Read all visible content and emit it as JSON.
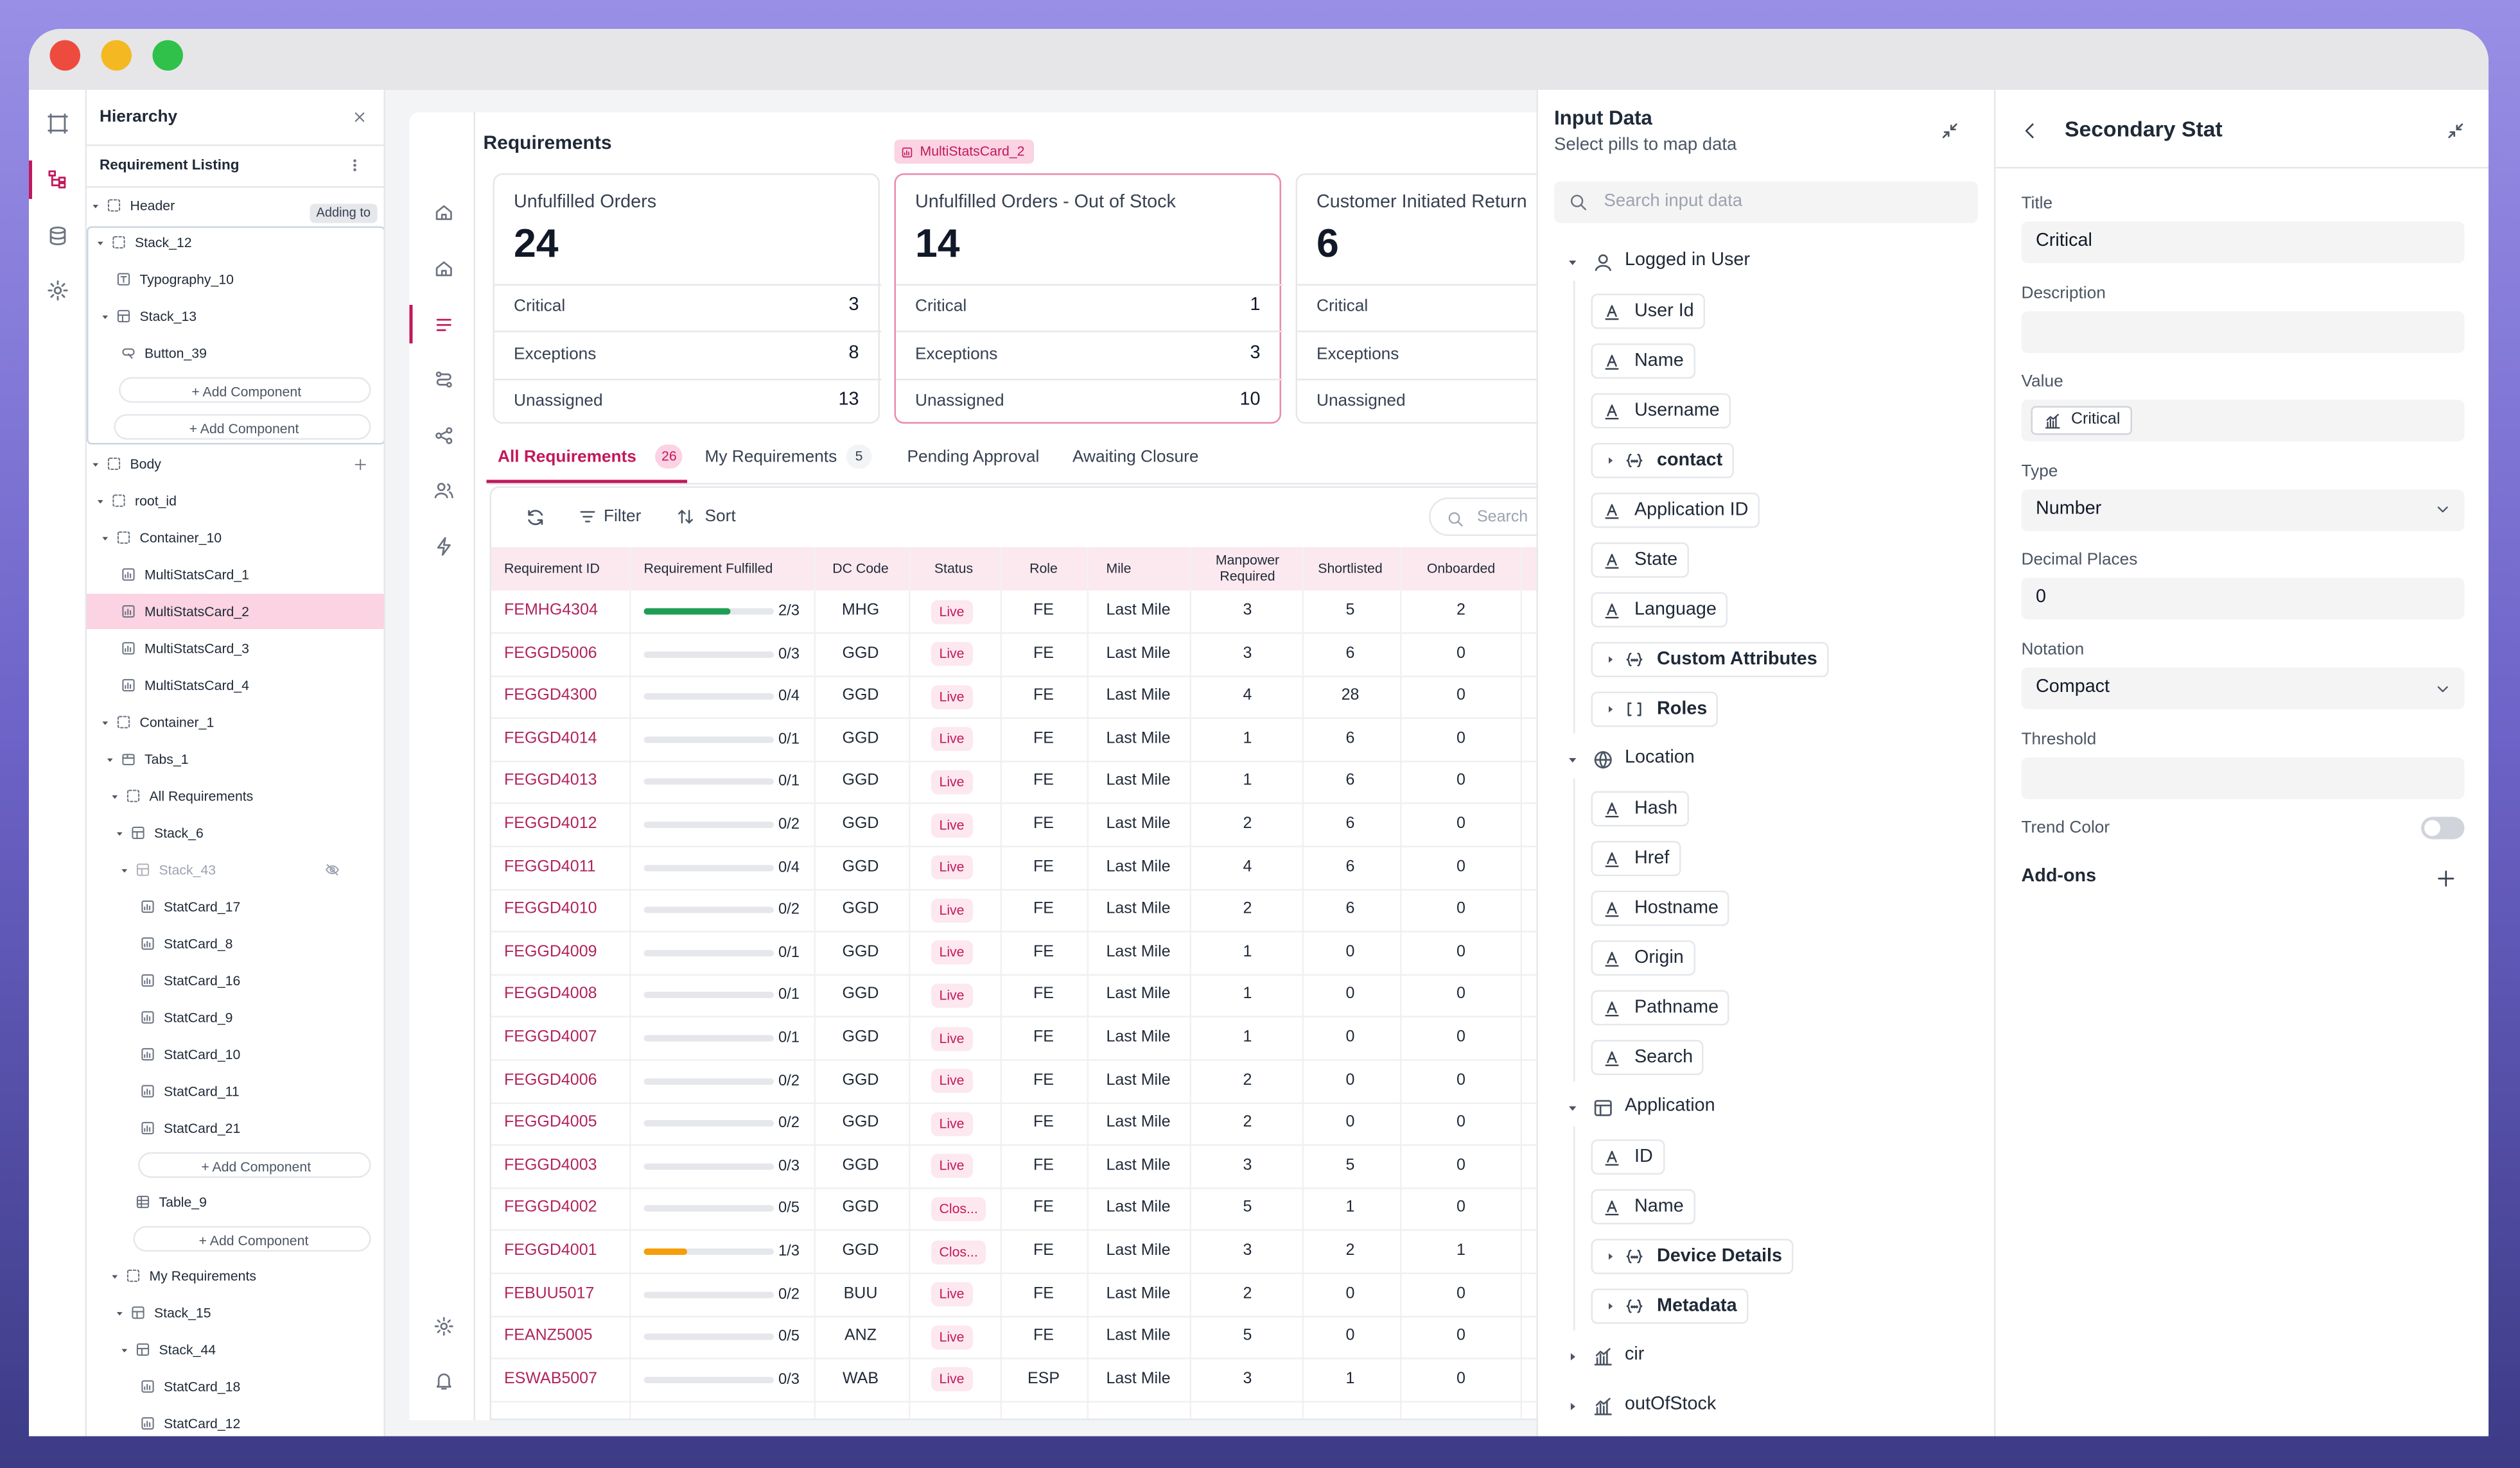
{
  "hierarchy": {
    "title": "Hierarchy",
    "subtitle": "Requirement Listing",
    "nodes": [
      {
        "label": "Header",
        "icon": "frame",
        "badge": "Adding to",
        "children": [
          {
            "label": "Stack_12",
            "icon": "frame",
            "children": [
              {
                "label": "Typography_10",
                "icon": "text"
              },
              {
                "label": "Stack_13",
                "icon": "stack",
                "children": [
                  {
                    "label": "Button_39",
                    "icon": "button"
                  },
                  {
                    "action": "+ Add Component"
                  }
                ]
              },
              {
                "action": "+ Add Component"
              }
            ]
          }
        ]
      },
      {
        "label": "Body",
        "icon": "frame",
        "addable": true,
        "children": [
          {
            "label": "root_id",
            "icon": "frame",
            "children": [
              {
                "label": "Container_10",
                "icon": "frame",
                "children": [
                  {
                    "label": "MultiStatsCard_1",
                    "icon": "card"
                  },
                  {
                    "label": "MultiStatsCard_2",
                    "icon": "card"
                  },
                  {
                    "label": "MultiStatsCard_3",
                    "icon": "card"
                  },
                  {
                    "label": "MultiStatsCard_4",
                    "icon": "card"
                  }
                ]
              },
              {
                "label": "Container_1",
                "icon": "frame",
                "children": [
                  {
                    "label": "Tabs_1",
                    "icon": "tabs",
                    "children": [
                      {
                        "label": "All Requirements",
                        "icon": "frame",
                        "children": [
                          {
                            "label": "Stack_6",
                            "icon": "stack",
                            "children": [
                              {
                                "label": "Stack_43",
                                "icon": "stack",
                                "hidden": true,
                                "children": [
                                  {
                                    "label": "StatCard_17",
                                    "icon": "card"
                                  },
                                  {
                                    "label": "StatCard_8",
                                    "icon": "card"
                                  },
                                  {
                                    "label": "StatCard_16",
                                    "icon": "card"
                                  },
                                  {
                                    "label": "StatCard_9",
                                    "icon": "card"
                                  },
                                  {
                                    "label": "StatCard_10",
                                    "icon": "card"
                                  },
                                  {
                                    "label": "StatCard_11",
                                    "icon": "card"
                                  },
                                  {
                                    "label": "StatCard_21",
                                    "icon": "card"
                                  },
                                  {
                                    "action": "+ Add Component"
                                  }
                                ]
                              },
                              {
                                "label": "Table_9",
                                "icon": "table"
                              },
                              {
                                "action": "+ Add Component"
                              }
                            ]
                          }
                        ]
                      },
                      {
                        "label": "My Requirements",
                        "icon": "frame",
                        "children": [
                          {
                            "label": "Stack_15",
                            "icon": "stack",
                            "children": [
                              {
                                "label": "Stack_44",
                                "icon": "stack",
                                "children": [
                                  {
                                    "label": "StatCard_18",
                                    "icon": "card"
                                  },
                                  {
                                    "label": "StatCard_12",
                                    "icon": "card"
                                  }
                                ]
                              }
                            ]
                          }
                        ]
                      }
                    ]
                  }
                ]
              }
            ]
          }
        ]
      }
    ]
  },
  "main": {
    "title": "Requirements",
    "selected_badge": "MultiStatsCard_2",
    "cards": [
      {
        "title": "Unfulfilled Orders",
        "value": 24,
        "rows": [
          [
            "Critical",
            3
          ],
          [
            "Exceptions",
            8
          ],
          [
            "Unassigned",
            13
          ]
        ]
      },
      {
        "title": "Unfulfilled Orders - Out of Stock",
        "value": 14,
        "rows": [
          [
            "Critical",
            1
          ],
          [
            "Exceptions",
            3
          ],
          [
            "Unassigned",
            10
          ]
        ]
      },
      {
        "title": "Customer Initiated Return",
        "value": 6,
        "rows": [
          [
            "Critical"
          ],
          [
            "Exceptions"
          ],
          [
            "Unassigned"
          ]
        ]
      }
    ],
    "tabs": [
      {
        "label": "All Requirements",
        "count": 26
      },
      {
        "label": "My Requirements",
        "count": 5
      },
      {
        "label": "Pending Approval"
      },
      {
        "label": "Awaiting Closure"
      }
    ],
    "toolbar": {
      "filter": "Filter",
      "sort": "Sort",
      "search": "Search"
    },
    "table": {
      "columns": [
        "Requirement ID",
        "Requirement Fulfilled",
        "DC Code",
        "Status",
        "Role",
        "Mile",
        "Manpower Required",
        "Shortlisted",
        "Onboarded"
      ],
      "rows": [
        [
          "FEMHG4304",
          "2/3",
          "MHG",
          "Live",
          "FE",
          "Last Mile",
          3,
          5,
          2
        ],
        [
          "FEGGD5006",
          "0/3",
          "GGD",
          "Live",
          "FE",
          "Last Mile",
          3,
          6,
          0
        ],
        [
          "FEGGD4300",
          "0/4",
          "GGD",
          "Live",
          "FE",
          "Last Mile",
          4,
          28,
          0
        ],
        [
          "FEGGD4014",
          "0/1",
          "GGD",
          "Live",
          "FE",
          "Last Mile",
          1,
          6,
          0
        ],
        [
          "FEGGD4013",
          "0/1",
          "GGD",
          "Live",
          "FE",
          "Last Mile",
          1,
          6,
          0
        ],
        [
          "FEGGD4012",
          "0/2",
          "GGD",
          "Live",
          "FE",
          "Last Mile",
          2,
          6,
          0
        ],
        [
          "FEGGD4011",
          "0/4",
          "GGD",
          "Live",
          "FE",
          "Last Mile",
          4,
          6,
          0
        ],
        [
          "FEGGD4010",
          "0/2",
          "GGD",
          "Live",
          "FE",
          "Last Mile",
          2,
          6,
          0
        ],
        [
          "FEGGD4009",
          "0/1",
          "GGD",
          "Live",
          "FE",
          "Last Mile",
          1,
          0,
          0
        ],
        [
          "FEGGD4008",
          "0/1",
          "GGD",
          "Live",
          "FE",
          "Last Mile",
          1,
          0,
          0
        ],
        [
          "FEGGD4007",
          "0/1",
          "GGD",
          "Live",
          "FE",
          "Last Mile",
          1,
          0,
          0
        ],
        [
          "FEGGD4006",
          "0/2",
          "GGD",
          "Live",
          "FE",
          "Last Mile",
          2,
          0,
          0
        ],
        [
          "FEGGD4005",
          "0/2",
          "GGD",
          "Live",
          "FE",
          "Last Mile",
          2,
          0,
          0
        ],
        [
          "FEGGD4003",
          "0/3",
          "GGD",
          "Live",
          "FE",
          "Last Mile",
          3,
          5,
          0
        ],
        [
          "FEGGD4002",
          "0/5",
          "GGD",
          "Clos...",
          "FE",
          "Last Mile",
          5,
          1,
          0
        ],
        [
          "FEGGD4001",
          "1/3",
          "GGD",
          "Clos...",
          "FE",
          "Last Mile",
          3,
          2,
          1
        ],
        [
          "FEBUU5017",
          "0/2",
          "BUU",
          "Live",
          "FE",
          "Last Mile",
          2,
          0,
          0
        ],
        [
          "FEANZ5005",
          "0/5",
          "ANZ",
          "Live",
          "FE",
          "Last Mile",
          5,
          0,
          0
        ],
        [
          "ESWAB5007",
          "0/3",
          "WAB",
          "Live",
          "ESP",
          "Last Mile",
          3,
          1,
          0
        ]
      ]
    }
  },
  "input_data": {
    "title": "Input Data",
    "subtitle": "Select pills to map data",
    "search_placeholder": "Search input data",
    "groups": [
      {
        "label": "Logged in User",
        "icon": "user",
        "children": [
          {
            "label": "User Id"
          },
          {
            "label": "Name"
          },
          {
            "label": "Username"
          },
          {
            "label": "contact",
            "icon": "object"
          },
          {
            "label": "Application ID"
          },
          {
            "label": "State"
          },
          {
            "label": "Language"
          },
          {
            "label": "Custom Attributes",
            "icon": "object"
          },
          {
            "label": "Roles",
            "icon": "array"
          }
        ]
      },
      {
        "label": "Location",
        "icon": "globe",
        "children": [
          {
            "label": "Hash"
          },
          {
            "label": "Href"
          },
          {
            "label": "Hostname"
          },
          {
            "label": "Origin"
          },
          {
            "label": "Pathname"
          },
          {
            "label": "Search"
          }
        ]
      },
      {
        "label": "Application",
        "icon": "app",
        "children": [
          {
            "label": "ID"
          },
          {
            "label": "Name"
          },
          {
            "label": "Device Details",
            "icon": "object"
          },
          {
            "label": "Metadata",
            "icon": "object"
          }
        ]
      },
      {
        "label": "cir",
        "icon": "chart"
      },
      {
        "label": "outOfStock",
        "icon": "chart"
      }
    ]
  },
  "secondary_stat": {
    "title": "Secondary Stat",
    "fields": [
      {
        "label": "Title",
        "value": "Critical"
      },
      {
        "label": "Description"
      },
      {
        "label": "Value",
        "pill": "Critical"
      },
      {
        "label": "Type",
        "value": "Number",
        "select": true
      },
      {
        "label": "Decimal Places",
        "value": "0"
      },
      {
        "label": "Notation",
        "value": "Compact",
        "select": true
      },
      {
        "label": "Threshold"
      },
      {
        "label": "Trend Color",
        "toggle": false
      }
    ],
    "addons": "Add-ons"
  }
}
